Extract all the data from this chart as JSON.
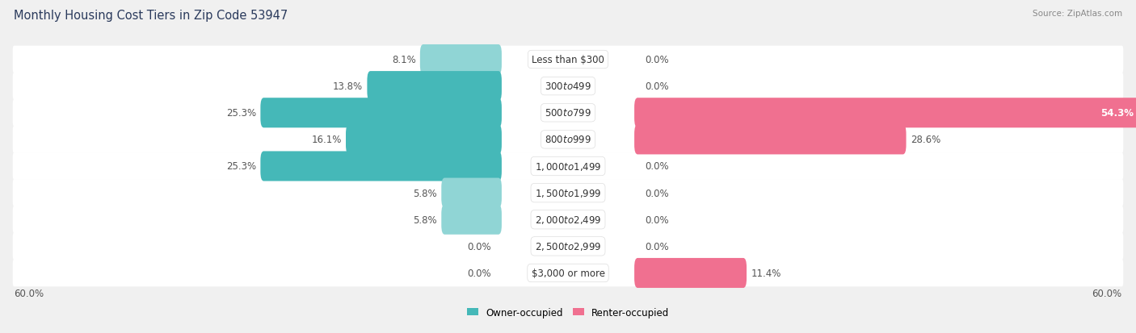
{
  "title": "Monthly Housing Cost Tiers in Zip Code 53947",
  "source": "Source: ZipAtlas.com",
  "categories": [
    "Less than $300",
    "$300 to $499",
    "$500 to $799",
    "$800 to $999",
    "$1,000 to $1,499",
    "$1,500 to $1,999",
    "$2,000 to $2,499",
    "$2,500 to $2,999",
    "$3,000 or more"
  ],
  "owner_values": [
    8.1,
    13.8,
    25.3,
    16.1,
    25.3,
    5.8,
    5.8,
    0.0,
    0.0
  ],
  "renter_values": [
    0.0,
    0.0,
    54.3,
    28.6,
    0.0,
    0.0,
    0.0,
    0.0,
    11.4
  ],
  "owner_color": "#45b8b8",
  "renter_color": "#f07090",
  "owner_light_color": "#90d5d5",
  "renter_light_color": "#f5aabb",
  "background_color": "#f0f0f0",
  "row_bg_color": "#ffffff",
  "title_fontsize": 10.5,
  "label_fontsize": 8.5,
  "value_fontsize": 8.5,
  "axis_max": 60.0
}
